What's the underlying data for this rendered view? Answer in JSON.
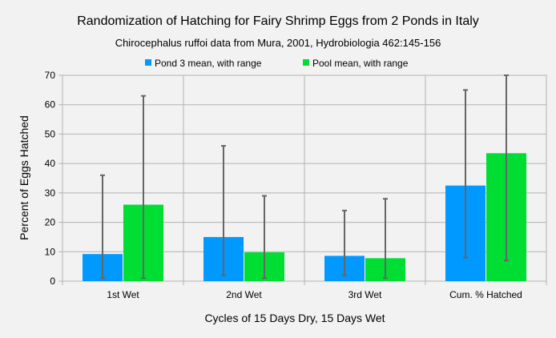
{
  "chart_data": {
    "type": "bar",
    "title": "Randomization of Hatching for Fairy Shrimp Eggs from 2 Ponds in Italy",
    "subtitle": "Chirocephalus ruffoi data from Mura, 2001, Hydrobiologia 462:145-156",
    "xlabel": "Cycles of 15 Days Dry, 15 Days Wet",
    "ylabel": "Percent of Eggs Hatched",
    "ylim": [
      0,
      70
    ],
    "yticks": [
      "0",
      "10",
      "20",
      "30",
      "40",
      "50",
      "60",
      "70"
    ],
    "categories": [
      "1st Wet",
      "2nd Wet",
      "3rd Wet",
      "Cum. % Hatched"
    ],
    "grid": true,
    "legend_position": "top",
    "series": [
      {
        "name": "Pond 3 mean, with range",
        "color": "#0099ff",
        "values": [
          9.2,
          15,
          8.6,
          32.5
        ],
        "range_low": [
          1,
          2,
          2,
          8
        ],
        "range_high": [
          36,
          46,
          24,
          65
        ]
      },
      {
        "name": "Pool mean, with range",
        "color": "#00dd33",
        "values": [
          26,
          9.8,
          7.8,
          43.5
        ],
        "range_low": [
          1,
          1,
          1,
          7
        ],
        "range_high": [
          63,
          29,
          28,
          70
        ]
      }
    ]
  }
}
